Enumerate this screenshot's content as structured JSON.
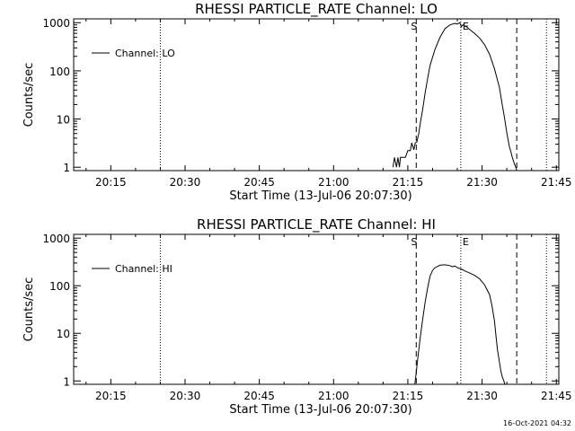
{
  "footer": {
    "timestamp": "16-Oct-2021 04:32"
  },
  "chart_data": [
    {
      "type": "line",
      "title": "RHESSI PARTICLE_RATE Channel: LO",
      "xlabel": "Start Time (13-Jul-06 20:07:30)",
      "ylabel": "Counts/sec",
      "yscale": "log",
      "ylim": [
        0.85,
        1200
      ],
      "xlim_minutes": [
        0,
        98
      ],
      "x_tick_minutes": [
        7.5,
        22.5,
        37.5,
        52.5,
        67.5,
        82.5,
        97.5
      ],
      "x_tick_labels": [
        "20:15",
        "20:30",
        "20:45",
        "21:00",
        "21:15",
        "21:30",
        "21:45"
      ],
      "y_ticks": [
        1,
        10,
        100,
        1000
      ],
      "y_tick_labels": [
        "1",
        "10",
        "100",
        "1000"
      ],
      "legend": {
        "position": "top-left",
        "label": "Channel: LO"
      },
      "markers": {
        "S_label": "S",
        "E_label": "E"
      },
      "vlines": [
        {
          "x": 17.5,
          "style": "dotted"
        },
        {
          "x": 69.2,
          "style": "dashed"
        },
        {
          "x": 78.2,
          "style": "dotted"
        },
        {
          "x": 89.5,
          "style": "dashed"
        },
        {
          "x": 95.5,
          "style": "dotted"
        }
      ],
      "series": [
        {
          "name": "Channel: LO",
          "x": [
            64.5,
            64.8,
            65.2,
            65.5,
            65.8,
            66.0,
            66.5,
            67.0,
            67.5,
            68.0,
            68.3,
            68.7,
            69.0,
            69.3,
            69.7,
            70.0,
            70.5,
            71.0,
            71.5,
            72.0,
            73.0,
            74.0,
            75.0,
            76.0,
            77.0,
            77.5,
            78.0,
            78.3,
            78.6,
            79.0,
            79.5,
            80.0,
            81.0,
            82.0,
            83.0,
            84.0,
            85.0,
            86.0,
            86.5,
            87.0,
            87.5,
            88.0,
            88.3,
            88.6,
            89.0,
            89.3,
            89.5
          ],
          "y": [
            1,
            1.6,
            1,
            1.6,
            1,
            1.6,
            1.6,
            1.6,
            2.2,
            2.2,
            3.2,
            2.3,
            3.2,
            3.3,
            5,
            8,
            16,
            35,
            70,
            130,
            280,
            500,
            750,
            900,
            970,
            940,
            1000,
            820,
            900,
            850,
            800,
            720,
            600,
            480,
            350,
            220,
            110,
            45,
            22,
            11,
            5.2,
            2.7,
            2.1,
            1.6,
            1.2,
            1,
            0.85
          ]
        }
      ]
    },
    {
      "type": "line",
      "title": "RHESSI PARTICLE_RATE Channel: HI",
      "xlabel": "Start Time (13-Jul-06 20:07:30)",
      "ylabel": "Counts/sec",
      "yscale": "log",
      "ylim": [
        0.85,
        1200
      ],
      "xlim_minutes": [
        0,
        98
      ],
      "x_tick_minutes": [
        7.5,
        22.5,
        37.5,
        52.5,
        67.5,
        82.5,
        97.5
      ],
      "x_tick_labels": [
        "20:15",
        "20:30",
        "20:45",
        "21:00",
        "21:15",
        "21:30",
        "21:45"
      ],
      "y_ticks": [
        1,
        10,
        100,
        1000
      ],
      "y_tick_labels": [
        "1",
        "10",
        "100",
        "1000"
      ],
      "legend": {
        "position": "top-left",
        "label": "Channel: HI"
      },
      "markers": {
        "S_label": "S",
        "E_label": "E"
      },
      "vlines": [
        {
          "x": 17.5,
          "style": "dotted"
        },
        {
          "x": 69.2,
          "style": "dashed"
        },
        {
          "x": 78.2,
          "style": "dotted"
        },
        {
          "x": 89.5,
          "style": "dashed"
        },
        {
          "x": 95.5,
          "style": "dotted"
        }
      ],
      "series": [
        {
          "name": "Channel: HI",
          "x": [
            68.9,
            69.2,
            69.5,
            70.0,
            70.5,
            71.0,
            71.5,
            72.0,
            72.5,
            73.0,
            74.0,
            75.0,
            76.0,
            76.5,
            77.0,
            77.5,
            78.0,
            78.5,
            79.0,
            80.0,
            81.0,
            82.0,
            83.0,
            84.0,
            84.5,
            85.0,
            85.3,
            85.6,
            86.0,
            86.3,
            86.6,
            86.9,
            87.1
          ],
          "y": [
            0.85,
            1.5,
            3,
            8,
            20,
            45,
            90,
            160,
            210,
            240,
            270,
            275,
            265,
            250,
            260,
            240,
            230,
            220,
            205,
            185,
            165,
            140,
            105,
            65,
            38,
            18,
            9,
            4.5,
            2.5,
            1.6,
            1.2,
            1,
            0.85
          ]
        }
      ]
    }
  ]
}
